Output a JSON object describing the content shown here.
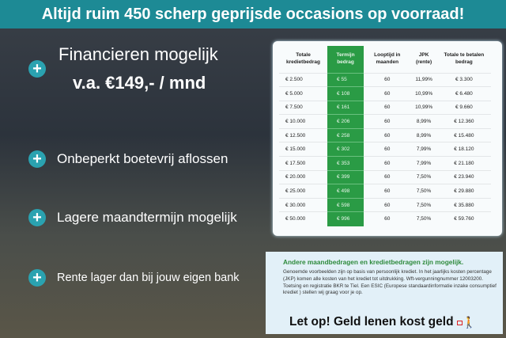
{
  "banner": {
    "title": "Altijd ruim 450 scherp geprijsde occasions op voorraad!"
  },
  "features": [
    {
      "line1": "Financieren mogelijk",
      "line2": "v.a. €149,- / mnd"
    },
    {
      "label": "Onbeperkt boetevrij aflossen"
    },
    {
      "label": "Lagere maandtermijn mogelijk"
    },
    {
      "label": "Rente lager dan bij jouw eigen bank"
    }
  ],
  "table": {
    "headers": [
      "Totale kredietbedrag",
      "Termijn bedrag",
      "Looptijd in maanden",
      "JPK (rente)",
      "Totale te betalen bedrag"
    ],
    "rows": [
      [
        "€ 2.500",
        "€ 55",
        "60",
        "11,99%",
        "€ 3.300"
      ],
      [
        "€ 5.000",
        "€ 108",
        "60",
        "10,99%",
        "€ 6.480"
      ],
      [
        "€ 7.500",
        "€ 161",
        "60",
        "10,99%",
        "€ 9.660"
      ],
      [
        "€ 10.000",
        "€ 206",
        "60",
        "8,99%",
        "€ 12.360"
      ],
      [
        "€ 12.500",
        "€ 258",
        "60",
        "8,99%",
        "€ 15.480"
      ],
      [
        "€ 15.000",
        "€ 302",
        "60",
        "7,99%",
        "€ 18.120"
      ],
      [
        "€ 17.500",
        "€ 353",
        "60",
        "7,99%",
        "€ 21.180"
      ],
      [
        "€ 20.000",
        "€ 399",
        "60",
        "7,50%",
        "€ 23.940"
      ],
      [
        "€ 25.000",
        "€ 498",
        "60",
        "7,50%",
        "€ 29.880"
      ],
      [
        "€ 30.000",
        "€ 598",
        "60",
        "7,50%",
        "€ 35.880"
      ],
      [
        "€ 50.000",
        "€ 996",
        "60",
        "7,50%",
        "€ 59.760"
      ]
    ],
    "accent": "#2a9b45"
  },
  "info": {
    "heading": "Andere maandbedragen en kredietbedragen zijn mogelijk.",
    "body": "Genoemde voorbeelden zijn op basis van persoonlijk krediet. In het jaarlijks kosten percentage (JKP) komen alle kosten van het krediet tot uitdrukking. Wft-vergunningnummer 12003200. Toetsing en registratie BKR te Tiel. Een ESIC (Europese standaardinformatie inzake consumptief krediet ) stellen wij graag voor je op.",
    "warning": "Let op! Geld lenen kost geld"
  }
}
